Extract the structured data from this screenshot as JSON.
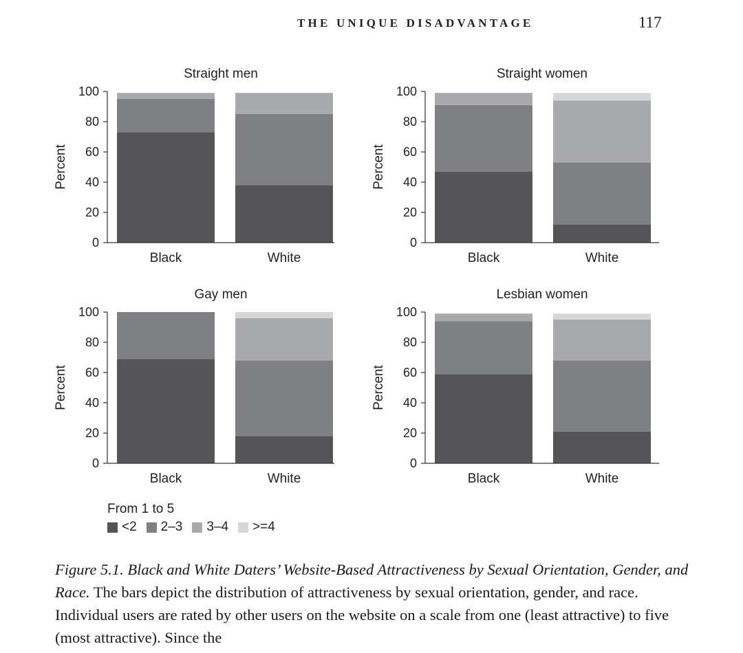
{
  "page": {
    "running_head": "THE UNIQUE DISADVANTAGE",
    "page_number": "117"
  },
  "legend": {
    "title": "From 1 to 5",
    "items": [
      {
        "label": "<2",
        "color": "#555557"
      },
      {
        "label": "2–3",
        "color": "#7f8083"
      },
      {
        "label": "3–4",
        "color": "#a9aaad"
      },
      {
        "label": ">=4",
        "color": "#d6d7d9"
      }
    ]
  },
  "caption": {
    "label": "Figure 5.1.",
    "title": "Black and White Daters’ Website-Based Attractiveness by Sexual Orientation, Gender, and Race.",
    "text": "The bars depict the distribution of attractiveness by sexual orientation, gender, and race. Individual users are rated by other users on the website on a scale from one (least attractive) to five (most attractive). Since the"
  },
  "chart_data": [
    {
      "type": "bar",
      "stacked": true,
      "title": "Straight men",
      "ylabel": "Percent",
      "xlabel": "",
      "ylim": [
        0,
        100
      ],
      "yticks": [
        0,
        20,
        40,
        60,
        80,
        100
      ],
      "categories": [
        "Black",
        "White"
      ],
      "series": [
        {
          "name": "<2",
          "values": [
            73,
            38
          ]
        },
        {
          "name": "2–3",
          "values": [
            22,
            47
          ]
        },
        {
          "name": "3–4",
          "values": [
            4,
            14
          ]
        },
        {
          "name": ">=4",
          "values": [
            0,
            0
          ]
        }
      ]
    },
    {
      "type": "bar",
      "stacked": true,
      "title": "Straight women",
      "ylabel": "Percent",
      "xlabel": "",
      "ylim": [
        0,
        100
      ],
      "yticks": [
        0,
        20,
        40,
        60,
        80,
        100
      ],
      "categories": [
        "Black",
        "White"
      ],
      "series": [
        {
          "name": "<2",
          "values": [
            47,
            12
          ]
        },
        {
          "name": "2–3",
          "values": [
            44,
            41
          ]
        },
        {
          "name": "3–4",
          "values": [
            8,
            41
          ]
        },
        {
          "name": ">=4",
          "values": [
            0,
            5
          ]
        }
      ]
    },
    {
      "type": "bar",
      "stacked": true,
      "title": "Gay men",
      "ylabel": "Percent",
      "xlabel": "",
      "ylim": [
        0,
        100
      ],
      "yticks": [
        0,
        20,
        40,
        60,
        80,
        100
      ],
      "categories": [
        "Black",
        "White"
      ],
      "series": [
        {
          "name": "<2",
          "values": [
            69,
            18
          ]
        },
        {
          "name": "2–3",
          "values": [
            31,
            50
          ]
        },
        {
          "name": "3–4",
          "values": [
            0,
            28
          ]
        },
        {
          "name": ">=4",
          "values": [
            0,
            4
          ]
        }
      ]
    },
    {
      "type": "bar",
      "stacked": true,
      "title": "Lesbian women",
      "ylabel": "Percent",
      "xlabel": "",
      "ylim": [
        0,
        100
      ],
      "yticks": [
        0,
        20,
        40,
        60,
        80,
        100
      ],
      "categories": [
        "Black",
        "White"
      ],
      "series": [
        {
          "name": "<2",
          "values": [
            59,
            21
          ]
        },
        {
          "name": "2–3",
          "values": [
            35,
            47
          ]
        },
        {
          "name": "3–4",
          "values": [
            5,
            27
          ]
        },
        {
          "name": ">=4",
          "values": [
            0,
            4
          ]
        }
      ]
    }
  ]
}
